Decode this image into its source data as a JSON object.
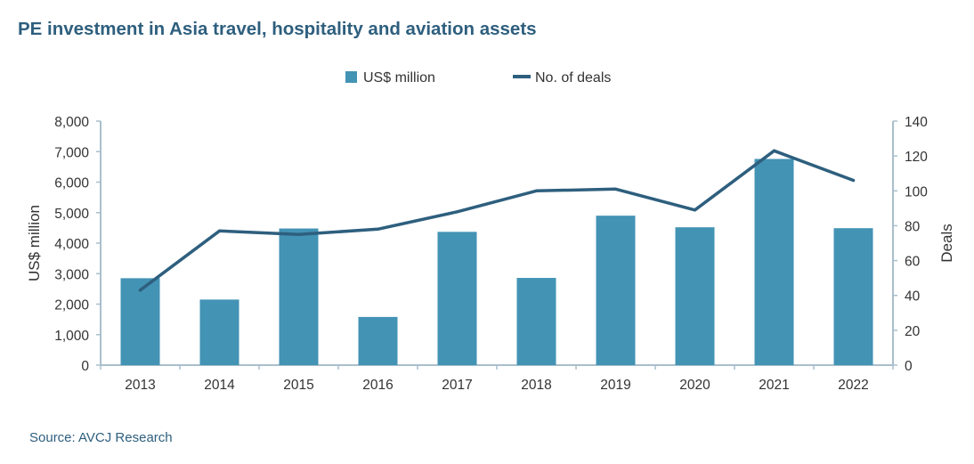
{
  "title": "PE investment in Asia travel, hospitality and aviation assets",
  "source": "Source: AVCJ Research",
  "colors": {
    "bar": "#4393b5",
    "line": "#2e5f7e",
    "axis": "#a9bfcc",
    "title": "#2e5f7e"
  },
  "chart_data": {
    "type": "bar",
    "categories": [
      "2013",
      "2014",
      "2015",
      "2016",
      "2017",
      "2018",
      "2019",
      "2020",
      "2021",
      "2022"
    ],
    "series": [
      {
        "name": "US$ million",
        "type": "bar",
        "axis": "left",
        "values": [
          2850,
          2150,
          4480,
          1580,
          4370,
          2860,
          4900,
          4520,
          6760,
          4490
        ]
      },
      {
        "name": "No. of deals",
        "type": "line",
        "axis": "right",
        "values": [
          43,
          77,
          75,
          78,
          88,
          100,
          101,
          89,
          123,
          106
        ]
      }
    ],
    "ylabel": "US$ million",
    "ylabel_right": "Deals",
    "ylim": [
      0,
      8000
    ],
    "ylim_right": [
      0,
      140
    ],
    "yticks": [
      "0",
      "1,000",
      "2,000",
      "3,000",
      "4,000",
      "5,000",
      "6,000",
      "7,000",
      "8,000"
    ],
    "yticks_right": [
      "0",
      "20",
      "40",
      "60",
      "80",
      "100",
      "120",
      "140"
    ],
    "legend": "top-center",
    "grid": false
  }
}
